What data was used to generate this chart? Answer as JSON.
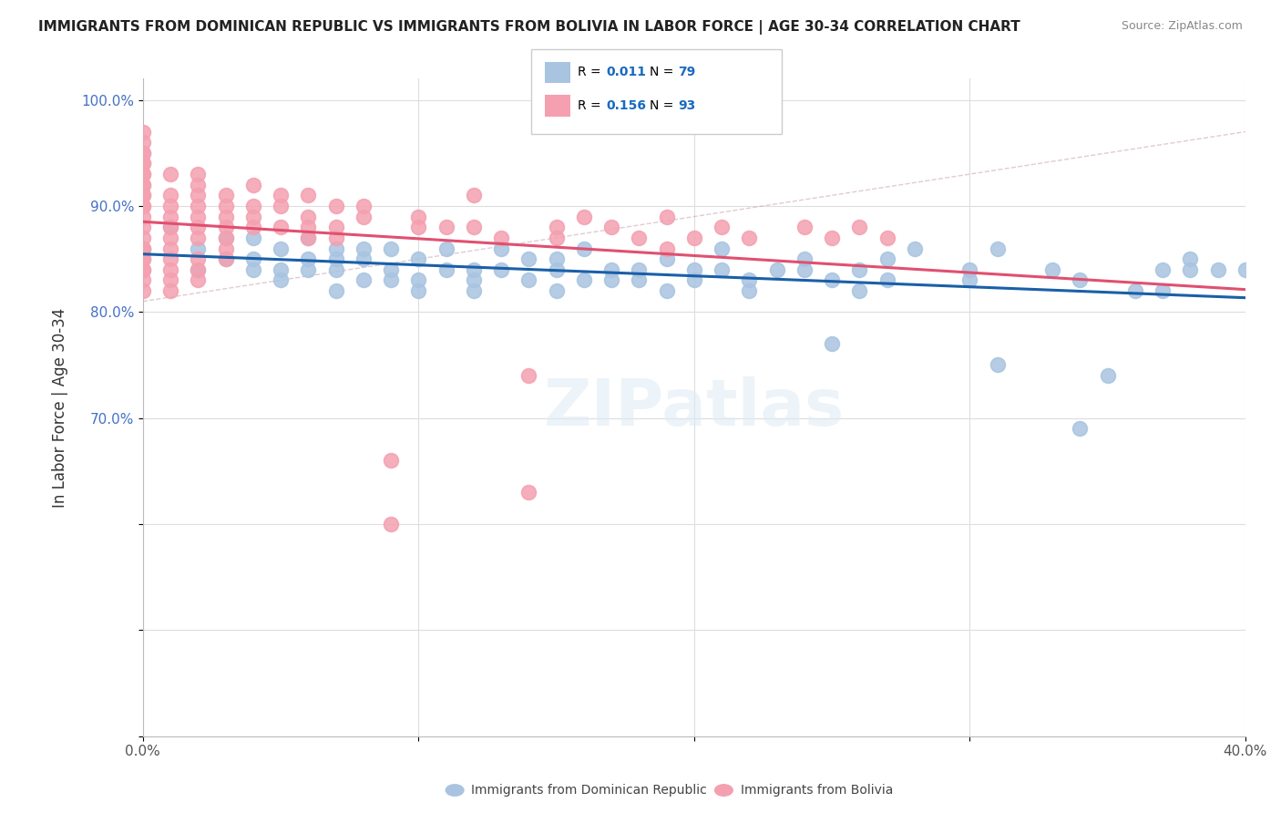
{
  "title": "IMMIGRANTS FROM DOMINICAN REPUBLIC VS IMMIGRANTS FROM BOLIVIA IN LABOR FORCE | AGE 30-34 CORRELATION CHART",
  "source": "Source: ZipAtlas.com",
  "ylabel": "In Labor Force | Age 30-34",
  "xlim": [
    0.0,
    0.4
  ],
  "ylim": [
    0.4,
    1.02
  ],
  "blue_color": "#a8c4e0",
  "pink_color": "#f4a0b0",
  "blue_line_color": "#1a5fa8",
  "pink_line_color": "#e05070",
  "r_value_color": "#1a6abf",
  "blue_R": "0.011",
  "blue_N": "79",
  "pink_R": "0.156",
  "pink_N": "93",
  "label_blue": "Immigrants from Dominican Republic",
  "label_pink": "Immigrants from Bolivia",
  "blue_scatter": [
    [
      0.0,
      0.86
    ],
    [
      0.01,
      0.88
    ],
    [
      0.02,
      0.84
    ],
    [
      0.02,
      0.86
    ],
    [
      0.03,
      0.87
    ],
    [
      0.03,
      0.85
    ],
    [
      0.04,
      0.85
    ],
    [
      0.04,
      0.84
    ],
    [
      0.04,
      0.87
    ],
    [
      0.05,
      0.84
    ],
    [
      0.05,
      0.86
    ],
    [
      0.05,
      0.83
    ],
    [
      0.06,
      0.84
    ],
    [
      0.06,
      0.85
    ],
    [
      0.06,
      0.87
    ],
    [
      0.07,
      0.86
    ],
    [
      0.07,
      0.84
    ],
    [
      0.07,
      0.82
    ],
    [
      0.07,
      0.85
    ],
    [
      0.08,
      0.86
    ],
    [
      0.08,
      0.83
    ],
    [
      0.08,
      0.85
    ],
    [
      0.09,
      0.84
    ],
    [
      0.09,
      0.86
    ],
    [
      0.09,
      0.83
    ],
    [
      0.1,
      0.83
    ],
    [
      0.1,
      0.85
    ],
    [
      0.1,
      0.82
    ],
    [
      0.11,
      0.84
    ],
    [
      0.11,
      0.86
    ],
    [
      0.12,
      0.84
    ],
    [
      0.12,
      0.83
    ],
    [
      0.12,
      0.82
    ],
    [
      0.13,
      0.86
    ],
    [
      0.13,
      0.84
    ],
    [
      0.14,
      0.83
    ],
    [
      0.14,
      0.85
    ],
    [
      0.15,
      0.84
    ],
    [
      0.15,
      0.82
    ],
    [
      0.15,
      0.85
    ],
    [
      0.16,
      0.83
    ],
    [
      0.16,
      0.86
    ],
    [
      0.17,
      0.84
    ],
    [
      0.17,
      0.83
    ],
    [
      0.18,
      0.84
    ],
    [
      0.18,
      0.83
    ],
    [
      0.19,
      0.82
    ],
    [
      0.19,
      0.85
    ],
    [
      0.2,
      0.84
    ],
    [
      0.2,
      0.83
    ],
    [
      0.21,
      0.86
    ],
    [
      0.21,
      0.84
    ],
    [
      0.22,
      0.83
    ],
    [
      0.22,
      0.82
    ],
    [
      0.23,
      0.84
    ],
    [
      0.24,
      0.85
    ],
    [
      0.24,
      0.84
    ],
    [
      0.25,
      0.83
    ],
    [
      0.25,
      0.77
    ],
    [
      0.26,
      0.84
    ],
    [
      0.26,
      0.82
    ],
    [
      0.27,
      0.83
    ],
    [
      0.27,
      0.85
    ],
    [
      0.28,
      0.86
    ],
    [
      0.3,
      0.84
    ],
    [
      0.3,
      0.83
    ],
    [
      0.31,
      0.86
    ],
    [
      0.31,
      0.75
    ],
    [
      0.33,
      0.84
    ],
    [
      0.34,
      0.69
    ],
    [
      0.34,
      0.83
    ],
    [
      0.35,
      0.74
    ],
    [
      0.36,
      0.82
    ],
    [
      0.37,
      0.84
    ],
    [
      0.37,
      0.82
    ],
    [
      0.38,
      0.85
    ],
    [
      0.38,
      0.84
    ],
    [
      0.39,
      0.84
    ],
    [
      0.4,
      0.84
    ]
  ],
  "pink_scatter": [
    [
      0.0,
      0.97
    ],
    [
      0.0,
      0.96
    ],
    [
      0.0,
      0.95
    ],
    [
      0.0,
      0.95
    ],
    [
      0.0,
      0.94
    ],
    [
      0.0,
      0.94
    ],
    [
      0.0,
      0.93
    ],
    [
      0.0,
      0.93
    ],
    [
      0.0,
      0.92
    ],
    [
      0.0,
      0.92
    ],
    [
      0.0,
      0.91
    ],
    [
      0.0,
      0.91
    ],
    [
      0.0,
      0.9
    ],
    [
      0.0,
      0.9
    ],
    [
      0.0,
      0.89
    ],
    [
      0.0,
      0.88
    ],
    [
      0.0,
      0.87
    ],
    [
      0.0,
      0.86
    ],
    [
      0.0,
      0.85
    ],
    [
      0.0,
      0.84
    ],
    [
      0.0,
      0.83
    ],
    [
      0.0,
      0.82
    ],
    [
      0.0,
      0.84
    ],
    [
      0.0,
      0.86
    ],
    [
      0.0,
      0.85
    ],
    [
      0.01,
      0.93
    ],
    [
      0.01,
      0.91
    ],
    [
      0.01,
      0.9
    ],
    [
      0.01,
      0.89
    ],
    [
      0.01,
      0.88
    ],
    [
      0.01,
      0.87
    ],
    [
      0.01,
      0.86
    ],
    [
      0.01,
      0.85
    ],
    [
      0.01,
      0.84
    ],
    [
      0.01,
      0.83
    ],
    [
      0.01,
      0.82
    ],
    [
      0.02,
      0.93
    ],
    [
      0.02,
      0.92
    ],
    [
      0.02,
      0.91
    ],
    [
      0.02,
      0.9
    ],
    [
      0.02,
      0.89
    ],
    [
      0.02,
      0.88
    ],
    [
      0.02,
      0.87
    ],
    [
      0.02,
      0.85
    ],
    [
      0.02,
      0.84
    ],
    [
      0.02,
      0.83
    ],
    [
      0.03,
      0.91
    ],
    [
      0.03,
      0.9
    ],
    [
      0.03,
      0.89
    ],
    [
      0.03,
      0.88
    ],
    [
      0.03,
      0.87
    ],
    [
      0.03,
      0.86
    ],
    [
      0.03,
      0.85
    ],
    [
      0.04,
      0.92
    ],
    [
      0.04,
      0.9
    ],
    [
      0.04,
      0.89
    ],
    [
      0.04,
      0.88
    ],
    [
      0.05,
      0.91
    ],
    [
      0.05,
      0.9
    ],
    [
      0.05,
      0.88
    ],
    [
      0.06,
      0.91
    ],
    [
      0.06,
      0.89
    ],
    [
      0.06,
      0.88
    ],
    [
      0.06,
      0.87
    ],
    [
      0.07,
      0.9
    ],
    [
      0.07,
      0.88
    ],
    [
      0.07,
      0.87
    ],
    [
      0.08,
      0.9
    ],
    [
      0.08,
      0.89
    ],
    [
      0.09,
      0.66
    ],
    [
      0.09,
      0.6
    ],
    [
      0.1,
      0.89
    ],
    [
      0.1,
      0.88
    ],
    [
      0.11,
      0.88
    ],
    [
      0.12,
      0.91
    ],
    [
      0.12,
      0.88
    ],
    [
      0.13,
      0.87
    ],
    [
      0.14,
      0.74
    ],
    [
      0.14,
      0.63
    ],
    [
      0.15,
      0.88
    ],
    [
      0.15,
      0.87
    ],
    [
      0.16,
      0.89
    ],
    [
      0.17,
      0.88
    ],
    [
      0.18,
      0.87
    ],
    [
      0.19,
      0.86
    ],
    [
      0.19,
      0.89
    ],
    [
      0.2,
      0.87
    ],
    [
      0.21,
      0.88
    ],
    [
      0.22,
      0.87
    ],
    [
      0.24,
      0.88
    ],
    [
      0.25,
      0.87
    ],
    [
      0.26,
      0.88
    ],
    [
      0.27,
      0.87
    ]
  ]
}
